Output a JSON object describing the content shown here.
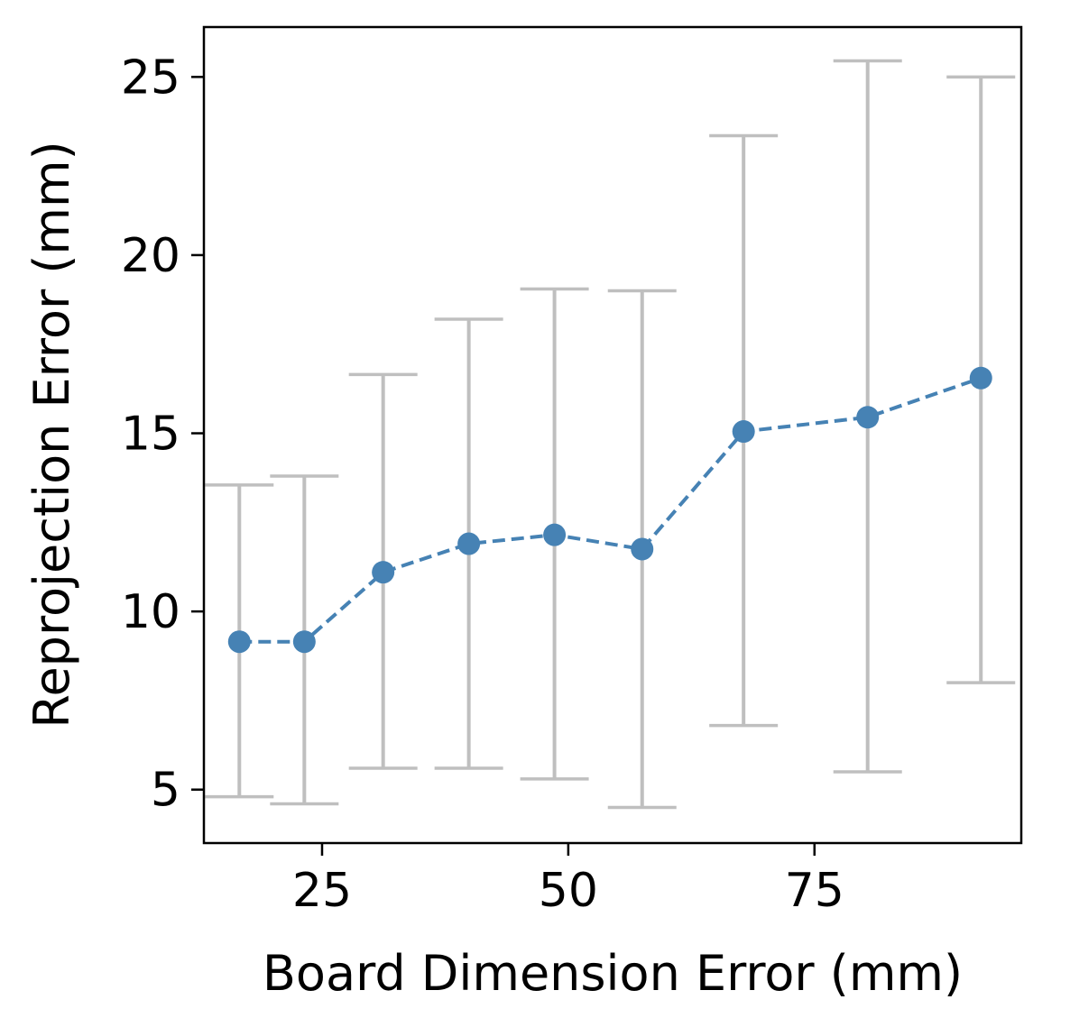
{
  "chart_data": {
    "type": "line",
    "title": "",
    "xlabel": "Board Dimension Error (mm)",
    "ylabel": "Reprojection Error (mm)",
    "xlim": [
      13,
      96
    ],
    "ylim": [
      3.5,
      26.4
    ],
    "xticks": [
      25,
      50,
      75
    ],
    "yticks": [
      5,
      10,
      15,
      20,
      25
    ],
    "grid": false,
    "legend": "none",
    "series": [
      {
        "x": [
          16.6,
          23.2,
          31.2,
          39.9,
          48.6,
          57.5,
          67.8,
          80.4,
          91.9
        ],
        "y": [
          9.15,
          9.15,
          11.1,
          11.9,
          12.15,
          11.75,
          15.05,
          15.45,
          16.55
        ],
        "err_low": [
          4.8,
          4.6,
          5.6,
          5.6,
          5.3,
          4.5,
          6.8,
          5.5,
          8.0
        ],
        "err_high": [
          13.55,
          13.8,
          16.65,
          18.2,
          19.05,
          19.0,
          23.35,
          25.45,
          25.0
        ],
        "line_style": "dashed",
        "marker": "circle",
        "color": "#4682b4",
        "error_color": "#bfbfbf"
      }
    ]
  }
}
